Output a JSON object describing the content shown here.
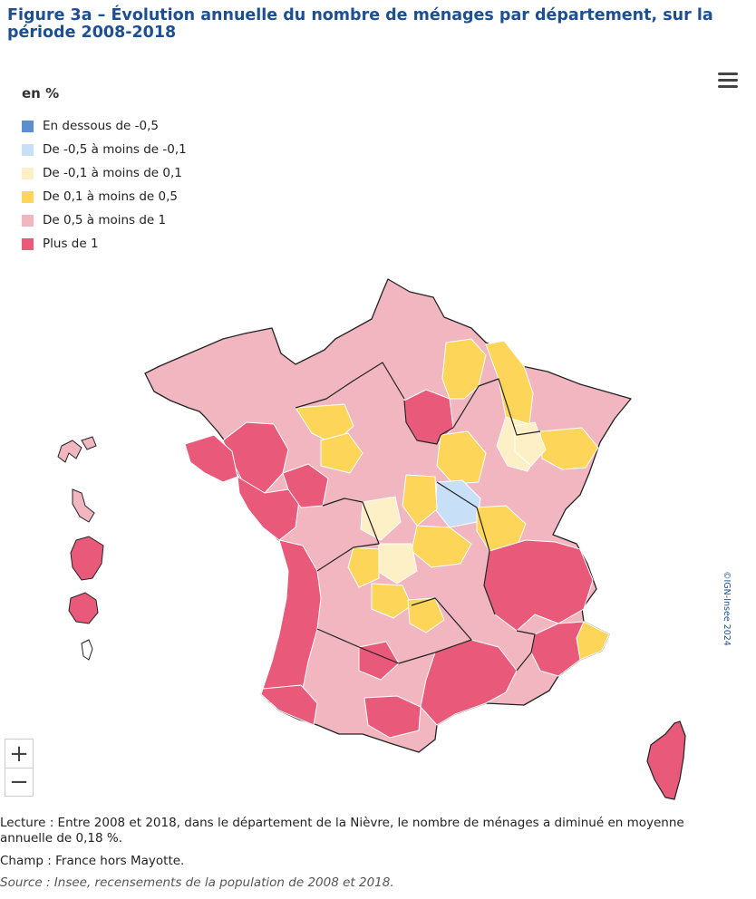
{
  "title": "Figure 3a – Évolution annuelle du nombre de ménages par département, sur la période 2008-2018",
  "legend": {
    "title": "en %",
    "items": [
      {
        "label": "En dessous de -0,5",
        "color": "#5b8fcf"
      },
      {
        "label": "De -0,5 à moins de -0,1",
        "color": "#c7dff7"
      },
      {
        "label": "De -0,1 à moins de 0,1",
        "color": "#fdefc6"
      },
      {
        "label": "De 0,1 à moins de 0,5",
        "color": "#fdd659"
      },
      {
        "label": "De 0,5 à moins de 1",
        "color": "#f2b6c1"
      },
      {
        "label": "Plus de 1",
        "color": "#e8597a"
      }
    ]
  },
  "credit": "©IGN-Insee 2024",
  "zoom": {
    "in": "+",
    "out": "−"
  },
  "notes": {
    "lecture": "Lecture : Entre 2008 et 2018, dans le département de la Nièvre, le nombre de ménages a diminué en moyenne annuelle de 0,18 %.",
    "champ": "Champ : France hors Mayotte.",
    "source": "Source : Insee, recensements de la population de 2008 et 2018."
  }
}
